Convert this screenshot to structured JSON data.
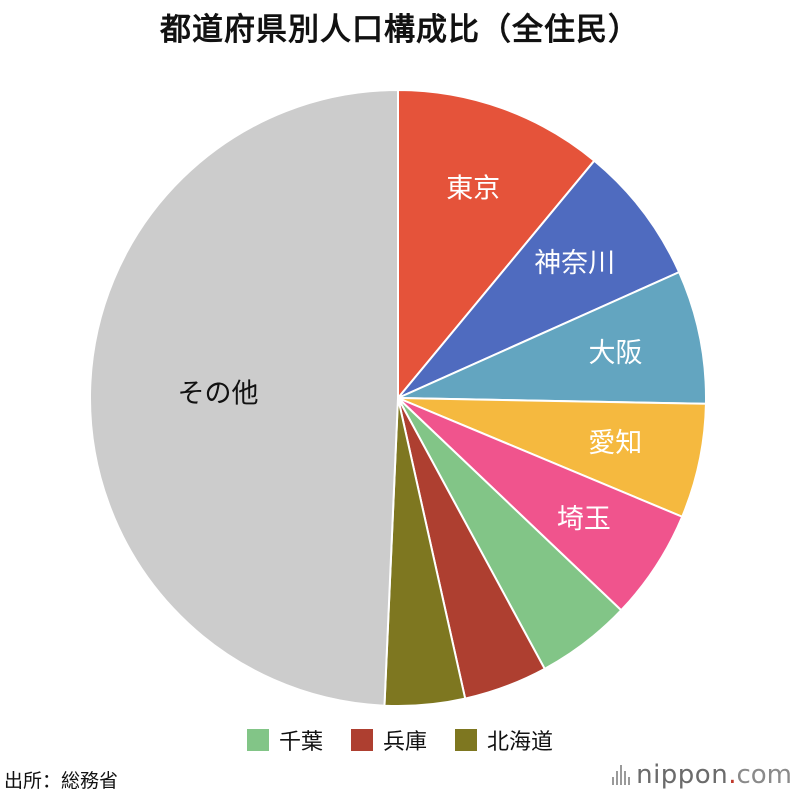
{
  "header": {
    "title": "都道府県別人口構成比（全住民）"
  },
  "chart_data": {
    "type": "pie",
    "title": "都道府県別人口構成比（全住民）",
    "slices": [
      {
        "label": "東京",
        "value": 11.0,
        "color": "#e5533a",
        "label_color": "#ffffff",
        "labeled": true
      },
      {
        "label": "神奈川",
        "value": 7.3,
        "color": "#4f6bbf",
        "label_color": "#ffffff",
        "labeled": true
      },
      {
        "label": "大阪",
        "value": 7.0,
        "color": "#63a5c0",
        "label_color": "#ffffff",
        "labeled": true
      },
      {
        "label": "愛知",
        "value": 6.0,
        "color": "#f5b93f",
        "label_color": "#ffffff",
        "labeled": true
      },
      {
        "label": "埼玉",
        "value": 5.8,
        "color": "#f0548d",
        "label_color": "#ffffff",
        "labeled": true
      },
      {
        "label": "千葉",
        "value": 5.0,
        "color": "#82c587",
        "label_color": "#ffffff",
        "labeled": false
      },
      {
        "label": "兵庫",
        "value": 4.4,
        "color": "#ae3f30",
        "label_color": "#ffffff",
        "labeled": false
      },
      {
        "label": "北海道",
        "value": 4.2,
        "color": "#7e7720",
        "label_color": "#ffffff",
        "labeled": false
      },
      {
        "label": "その他",
        "value": 49.3,
        "color": "#cccccc",
        "label_color": "#111111",
        "labeled": true
      }
    ],
    "legend": {
      "placement": "bottom",
      "entries": [
        "千葉",
        "兵庫",
        "北海道"
      ]
    }
  },
  "legend": {
    "items": [
      {
        "label": "千葉",
        "color": "#82c587"
      },
      {
        "label": "兵庫",
        "color": "#ae3f30"
      },
      {
        "label": "北海道",
        "color": "#7e7720"
      }
    ]
  },
  "footer": {
    "source": "出所：総務省",
    "brand_name": "nippon",
    "brand_dot": ".",
    "brand_tld": "com"
  }
}
